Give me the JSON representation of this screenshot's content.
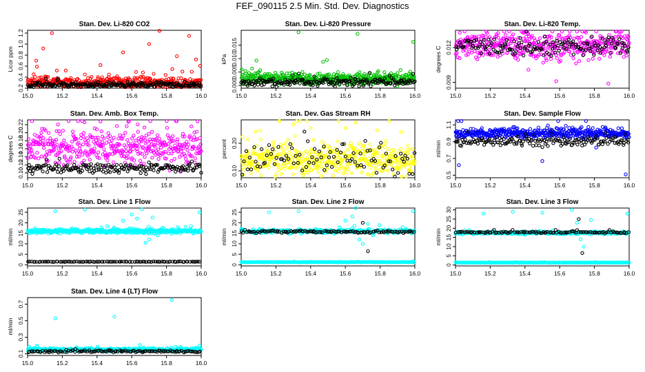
{
  "title": "FEF_090115  2.5 Min. Std. Dev. Diagnostics",
  "colors": {
    "reference": "#000000",
    "red": "#ff0000",
    "green": "#00c000",
    "magenta": "#ff00ff",
    "yellow": "#ffff00",
    "blue": "#0000ff",
    "cyan": "#00ffff"
  },
  "chart_data": [
    {
      "type": "scatter",
      "title": "Stan. Dev. Li-820 CO2",
      "ylabel": "Licor ppm",
      "xlim": [
        15.0,
        16.0
      ],
      "ylim": [
        0.2,
        1.25
      ],
      "xticks": [
        "15.0",
        "15.2",
        "15.4",
        "15.6",
        "15.8",
        "16.0"
      ],
      "yticks": [
        "0.2",
        "0.4",
        "0.6",
        "0.8",
        "1.0",
        "1.2"
      ],
      "series": [
        {
          "name": "main",
          "color": "red",
          "base": 0.3,
          "spread": 0.08,
          "n": 400,
          "outliers": [
            [
              15.05,
              0.7
            ],
            [
              15.09,
              0.92
            ],
            [
              15.14,
              1.2
            ],
            [
              15.22,
              0.52
            ],
            [
              15.42,
              0.62
            ],
            [
              15.55,
              0.85
            ],
            [
              15.7,
              1.0
            ],
            [
              15.76,
              1.24
            ],
            [
              15.86,
              0.78
            ],
            [
              15.93,
              1.15
            ],
            [
              15.97,
              0.72
            ]
          ]
        },
        {
          "name": "reference",
          "color": "reference",
          "base": 0.26,
          "spread": 0.04,
          "n": 220,
          "outliers": []
        }
      ]
    },
    {
      "type": "scatter",
      "title": "Stan. Dev. Li-820 Pressure",
      "ylabel": "kPa",
      "xlim": [
        15.0,
        16.0
      ],
      "ylim": [
        -0.001,
        0.0205
      ],
      "xticks": [
        "15.0",
        "15.2",
        "15.4",
        "15.6",
        "15.8",
        "16.0"
      ],
      "yticks": [
        "0.000",
        "0.005",
        "0.010",
        "0.015"
      ],
      "series": [
        {
          "name": "main",
          "color": "green",
          "base": 0.0025,
          "spread": 0.0018,
          "n": 450,
          "outliers": [
            [
              15.33,
              0.0198
            ],
            [
              15.67,
              0.0192
            ],
            [
              15.99,
              0.0162
            ]
          ]
        },
        {
          "name": "reference",
          "color": "reference",
          "base": 0.0012,
          "spread": 0.0012,
          "n": 200,
          "outliers": []
        }
      ]
    },
    {
      "type": "scatter",
      "title": "Stan. Dev. Li-820 Temp.",
      "ylabel": "degrees C",
      "xlim": [
        15.0,
        16.0
      ],
      "ylim": [
        0.0085,
        0.0135
      ],
      "xticks": [
        "15.0",
        "15.2",
        "15.4",
        "15.6",
        "15.8",
        "16.0"
      ],
      "yticks": [
        "0.009",
        "0.012"
      ],
      "series": [
        {
          "name": "main",
          "color": "magenta",
          "base": 0.0122,
          "spread": 0.0009,
          "n": 450,
          "outliers": [
            [
              15.58,
              0.0091
            ],
            [
              15.88,
              0.0089
            ],
            [
              15.42,
              0.0101
            ]
          ]
        },
        {
          "name": "reference",
          "color": "reference",
          "base": 0.0121,
          "spread": 0.0006,
          "n": 150,
          "outliers": []
        }
      ]
    },
    {
      "type": "scatter",
      "title": "Stan. Dev. Amb. Box Temp.",
      "ylabel": "degrees C",
      "xlim": [
        15.0,
        16.0
      ],
      "ylim": [
        0.088,
        0.232
      ],
      "xticks": [
        "15.0",
        "15.2",
        "15.4",
        "15.6",
        "15.8",
        "16.0"
      ],
      "yticks": [
        "0.10",
        "0.12",
        "0.14",
        "0.16",
        "0.18",
        "0.20",
        "0.22"
      ],
      "series": [
        {
          "name": "main",
          "color": "magenta",
          "base": 0.165,
          "spread": 0.035,
          "n": 450,
          "outliers": [
            [
              15.42,
              0.228
            ],
            [
              15.58,
              0.227
            ]
          ]
        },
        {
          "name": "reference",
          "color": "reference",
          "base": 0.112,
          "spread": 0.01,
          "n": 180,
          "outliers": []
        }
      ]
    },
    {
      "type": "scatter",
      "title": "Stan. Dev. Gas Stream RH",
      "ylabel": "percent",
      "xlim": [
        15.0,
        16.0
      ],
      "ylim": [
        0.075,
        0.285
      ],
      "xticks": [
        "15.0",
        "15.2",
        "15.4",
        "15.6",
        "15.8",
        "16.0"
      ],
      "yticks": [
        "0.10",
        "0.20"
      ],
      "series": [
        {
          "name": "main",
          "color": "yellow",
          "base": 0.14,
          "spread": 0.05,
          "n": 450,
          "outliers": [
            [
              15.32,
              0.28
            ],
            [
              15.66,
              0.275
            ],
            [
              15.4,
              0.255
            ]
          ]
        },
        {
          "name": "reference",
          "color": "reference",
          "base": 0.14,
          "spread": 0.05,
          "n": 90,
          "outliers": []
        }
      ]
    },
    {
      "type": "scatter",
      "title": "Stan. Dev. Sample Flow",
      "ylabel": "ml/min",
      "xlim": [
        15.0,
        16.0
      ],
      "ylim": [
        0.47,
        1.16
      ],
      "xticks": [
        "15.0",
        "15.2",
        "15.4",
        "15.6",
        "15.8",
        "16.0"
      ],
      "yticks": [
        "0.5",
        "0.7",
        "0.9",
        "1.1"
      ],
      "series": [
        {
          "name": "main",
          "color": "blue",
          "base": 1.0,
          "spread": 0.05,
          "n": 450,
          "outliers": [
            [
              15.02,
              0.62
            ],
            [
              15.5,
              0.67
            ],
            [
              15.98,
              0.51
            ],
            [
              15.81,
              0.83
            ]
          ]
        },
        {
          "name": "reference",
          "color": "reference",
          "base": 0.9,
          "spread": 0.05,
          "n": 160,
          "outliers": []
        }
      ]
    },
    {
      "type": "scatter",
      "title": "Stan. Dev. Line 1 Flow",
      "ylabel": "ml/min",
      "xlim": [
        15.0,
        16.0
      ],
      "ylim": [
        -0.5,
        27
      ],
      "xticks": [
        "15.0",
        "15.2",
        "15.4",
        "15.6",
        "15.8",
        "16.0"
      ],
      "yticks": [
        "0",
        "5",
        "10",
        "15",
        "20",
        "25"
      ],
      "series": [
        {
          "name": "main",
          "color": "cyan",
          "base": 16.0,
          "spread": 0.8,
          "n": 450,
          "outliers": [
            [
              15.16,
              25.5
            ],
            [
              15.33,
              26.2
            ],
            [
              15.55,
              21.0
            ],
            [
              15.6,
              24.0
            ],
            [
              15.63,
              22.0
            ],
            [
              15.66,
              26.5
            ],
            [
              15.68,
              10.5
            ],
            [
              15.7,
              12.0
            ],
            [
              15.72,
              22.5
            ],
            [
              15.75,
              14.0
            ],
            [
              15.99,
              25.0
            ]
          ]
        },
        {
          "name": "reference",
          "color": "reference",
          "base": 1.5,
          "spread": 0.1,
          "n": 100,
          "outliers": []
        }
      ]
    },
    {
      "type": "scatter",
      "title": "Stan. Dev. Line 2 Flow",
      "ylabel": "ml/min",
      "xlim": [
        15.0,
        16.0
      ],
      "ylim": [
        -0.5,
        27
      ],
      "xticks": [
        "15.0",
        "15.2",
        "15.4",
        "15.6",
        "15.8",
        "16.0"
      ],
      "yticks": [
        "0",
        "5",
        "10",
        "15",
        "20",
        "25"
      ],
      "series": [
        {
          "name": "main",
          "color": "cyan",
          "base": 16.0,
          "spread": 0.8,
          "n": 300,
          "outliers": [
            [
              15.16,
              25.0
            ],
            [
              15.33,
              25.5
            ],
            [
              15.6,
              21.0
            ],
            [
              15.64,
              23.0
            ],
            [
              15.66,
              27.0
            ],
            [
              15.68,
              12.0
            ],
            [
              15.7,
              10.0
            ],
            [
              15.73,
              19.5
            ],
            [
              15.76,
              14.0
            ],
            [
              15.99,
              25.5
            ]
          ]
        },
        {
          "name": "baseline",
          "color": "cyan",
          "base": 1.3,
          "spread": 0.1,
          "n": 220,
          "outliers": []
        },
        {
          "name": "reference",
          "color": "reference",
          "base": 15.7,
          "spread": 0.4,
          "n": 110,
          "outliers": [
            [
              15.7,
              20.0
            ],
            [
              15.73,
              6.5
            ]
          ]
        }
      ]
    },
    {
      "type": "scatter",
      "title": "Stan. Dev. Line 3 Flow",
      "ylabel": "ml/min",
      "xlim": [
        15.0,
        16.0
      ],
      "ylim": [
        -0.5,
        31
      ],
      "xticks": [
        "15.0",
        "15.2",
        "15.4",
        "15.6",
        "15.8",
        "16.0"
      ],
      "yticks": [
        "0",
        "5",
        "10",
        "15",
        "20",
        "25",
        "30"
      ],
      "series": [
        {
          "name": "main",
          "color": "cyan",
          "base": 17.5,
          "spread": 0.6,
          "n": 300,
          "outliers": [
            [
              15.16,
              28.0
            ],
            [
              15.33,
              29.0
            ],
            [
              15.5,
              28.5
            ],
            [
              15.67,
              30.0
            ],
            [
              15.7,
              23.0
            ],
            [
              15.72,
              14.0
            ],
            [
              15.74,
              10.0
            ],
            [
              15.78,
              24.5
            ],
            [
              15.99,
              28.0
            ]
          ]
        },
        {
          "name": "baseline",
          "color": "cyan",
          "base": 1.3,
          "spread": 0.1,
          "n": 220,
          "outliers": []
        },
        {
          "name": "reference",
          "color": "reference",
          "base": 17.8,
          "spread": 0.4,
          "n": 110,
          "outliers": [
            [
              15.71,
              25.0
            ],
            [
              15.73,
              6.5
            ]
          ]
        }
      ]
    },
    {
      "type": "scatter",
      "title": "Stan. Dev. Line 4 (LT) Flow",
      "ylabel": "ml/min",
      "xlim": [
        15.0,
        16.0
      ],
      "ylim": [
        0.08,
        0.78
      ],
      "xticks": [
        "15.0",
        "15.2",
        "15.4",
        "15.6",
        "15.8",
        "16.0"
      ],
      "yticks": [
        "0.1",
        "0.3",
        "0.5",
        "0.7"
      ],
      "series": [
        {
          "name": "main",
          "color": "cyan",
          "base": 0.15,
          "spread": 0.015,
          "n": 400,
          "outliers": [
            [
              15.16,
              0.53
            ],
            [
              15.5,
              0.55
            ],
            [
              15.83,
              0.75
            ],
            [
              15.99,
              0.2
            ]
          ]
        },
        {
          "name": "reference",
          "color": "reference",
          "base": 0.13,
          "spread": 0.01,
          "n": 120,
          "outliers": []
        }
      ]
    }
  ]
}
